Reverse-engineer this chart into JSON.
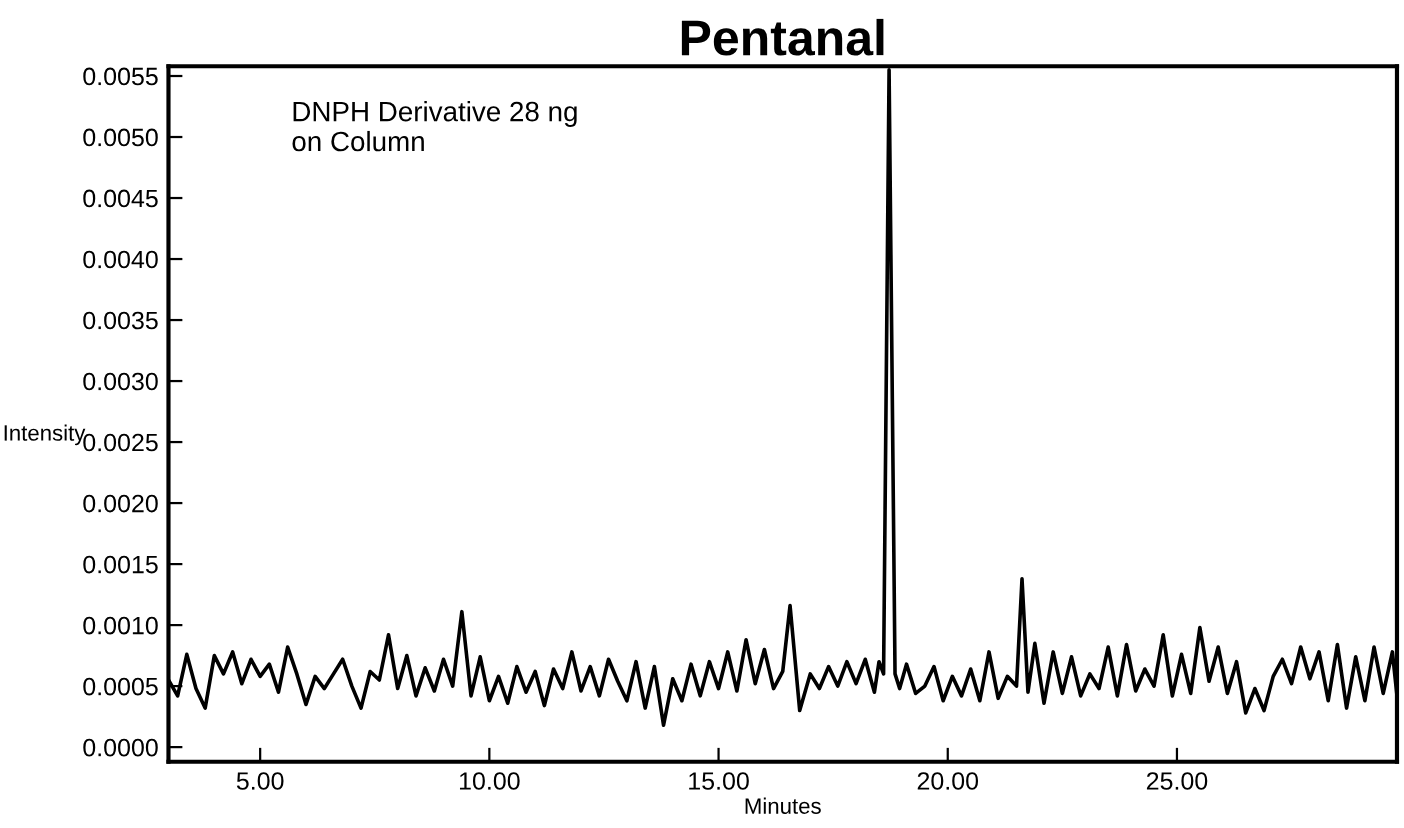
{
  "chart_data": {
    "type": "line",
    "title": "Pentanal",
    "xlabel": "Minutes",
    "ylabel": "Intensity",
    "annotations": [
      "DNPH Derivative 28 ng\non Column"
    ],
    "xlim": [
      3.0,
      29.8
    ],
    "ylim": [
      -0.00012,
      0.00558
    ],
    "xticks": [
      {
        "value": 5,
        "label": "5.00"
      },
      {
        "value": 10,
        "label": "10.00"
      },
      {
        "value": 15,
        "label": "15.00"
      },
      {
        "value": 20,
        "label": "20.00"
      },
      {
        "value": 25,
        "label": "25.00"
      }
    ],
    "yticks": [
      {
        "value": 0,
        "label": "0.0000"
      },
      {
        "value": 0.0005,
        "label": "0.0005"
      },
      {
        "value": 0.001,
        "label": "0.0010"
      },
      {
        "value": 0.0015,
        "label": "0.0015"
      },
      {
        "value": 0.002,
        "label": "0.0020"
      },
      {
        "value": 0.0025,
        "label": "0.0025"
      },
      {
        "value": 0.003,
        "label": "0.0030"
      },
      {
        "value": 0.0035,
        "label": "0.0035"
      },
      {
        "value": 0.004,
        "label": "0.0040"
      },
      {
        "value": 0.0045,
        "label": "0.0045"
      },
      {
        "value": 0.005,
        "label": "0.0050"
      },
      {
        "value": 0.0055,
        "label": "0.0055"
      }
    ],
    "grid": false,
    "marker": "none",
    "line_style": "solid",
    "series": [
      {
        "color": "#000000",
        "x": [
          3.0,
          3.2,
          3.4,
          3.6,
          3.8,
          4.0,
          4.2,
          4.4,
          4.6,
          4.8,
          5.0,
          5.2,
          5.4,
          5.6,
          5.8,
          6.0,
          6.2,
          6.4,
          6.6,
          6.8,
          7.0,
          7.2,
          7.4,
          7.6,
          7.8,
          8.0,
          8.2,
          8.4,
          8.6,
          8.8,
          9.0,
          9.2,
          9.4,
          9.6,
          9.8,
          10.0,
          10.2,
          10.4,
          10.6,
          10.8,
          11.0,
          11.2,
          11.4,
          11.6,
          11.8,
          12.0,
          12.2,
          12.4,
          12.6,
          12.8,
          13.0,
          13.2,
          13.4,
          13.6,
          13.8,
          14.0,
          14.2,
          14.4,
          14.6,
          14.8,
          15.0,
          15.2,
          15.4,
          15.6,
          15.8,
          16.0,
          16.2,
          16.4,
          16.56,
          16.77,
          17.0,
          17.2,
          17.4,
          17.6,
          17.8,
          18.0,
          18.2,
          18.4,
          18.5,
          18.6,
          18.72,
          18.85,
          18.95,
          19.1,
          19.3,
          19.5,
          19.7,
          19.9,
          20.1,
          20.3,
          20.5,
          20.7,
          20.9,
          21.1,
          21.3,
          21.5,
          21.62,
          21.75,
          21.9,
          22.1,
          22.3,
          22.5,
          22.7,
          22.9,
          23.1,
          23.3,
          23.5,
          23.7,
          23.9,
          24.1,
          24.3,
          24.5,
          24.7,
          24.9,
          25.1,
          25.3,
          25.5,
          25.7,
          25.9,
          26.1,
          26.3,
          26.5,
          26.7,
          26.9,
          27.1,
          27.3,
          27.5,
          27.7,
          27.9,
          28.1,
          28.3,
          28.5,
          28.7,
          28.9,
          29.1,
          29.3,
          29.5,
          29.7,
          29.8
        ],
        "values": [
          0.00055,
          0.00042,
          0.00076,
          0.00048,
          0.00032,
          0.00075,
          0.0006,
          0.00078,
          0.00052,
          0.00072,
          0.00058,
          0.00068,
          0.00045,
          0.00082,
          0.0006,
          0.00035,
          0.00058,
          0.00048,
          0.0006,
          0.00072,
          0.0005,
          0.00032,
          0.00062,
          0.00055,
          0.00092,
          0.00048,
          0.00075,
          0.00042,
          0.00065,
          0.00046,
          0.00072,
          0.0005,
          0.00111,
          0.00042,
          0.00074,
          0.00038,
          0.00058,
          0.00036,
          0.00066,
          0.00045,
          0.00062,
          0.00034,
          0.00064,
          0.00048,
          0.00078,
          0.00046,
          0.00066,
          0.00042,
          0.00072,
          0.00054,
          0.00038,
          0.0007,
          0.00032,
          0.00066,
          0.00018,
          0.00056,
          0.00038,
          0.00068,
          0.00042,
          0.0007,
          0.00048,
          0.00078,
          0.00046,
          0.00088,
          0.00052,
          0.0008,
          0.00048,
          0.00062,
          0.00116,
          0.0003,
          0.0006,
          0.00048,
          0.00066,
          0.0005,
          0.0007,
          0.00052,
          0.00072,
          0.00045,
          0.0007,
          0.0006,
          0.00555,
          0.0006,
          0.00048,
          0.00068,
          0.00044,
          0.0005,
          0.00066,
          0.00038,
          0.00058,
          0.00042,
          0.00064,
          0.00038,
          0.00078,
          0.0004,
          0.00058,
          0.0005,
          0.00138,
          0.00045,
          0.00085,
          0.00036,
          0.00078,
          0.00044,
          0.00074,
          0.00042,
          0.0006,
          0.00048,
          0.00082,
          0.00042,
          0.00084,
          0.00046,
          0.00064,
          0.0005,
          0.00092,
          0.00042,
          0.00076,
          0.00044,
          0.00098,
          0.00054,
          0.00082,
          0.00044,
          0.0007,
          0.00028,
          0.00048,
          0.0003,
          0.00058,
          0.00072,
          0.00052,
          0.00082,
          0.00056,
          0.00078,
          0.00038,
          0.00084,
          0.00032,
          0.00074,
          0.00038,
          0.00082,
          0.00044,
          0.00078,
          0.00042
        ]
      }
    ]
  }
}
